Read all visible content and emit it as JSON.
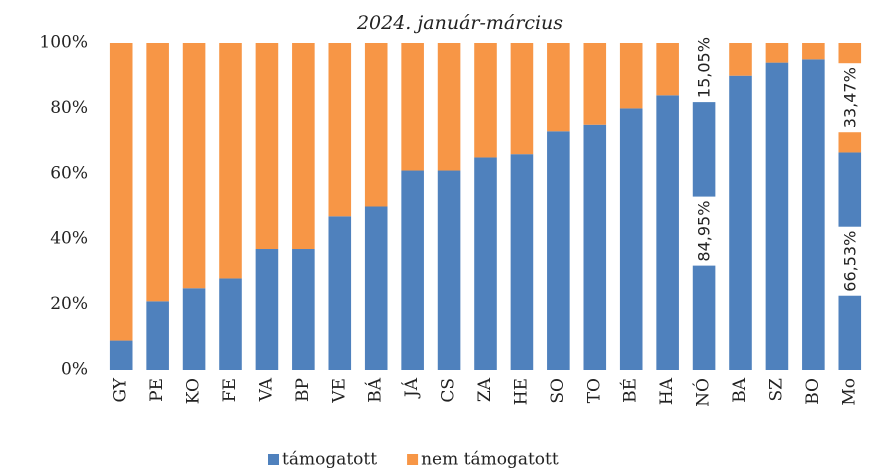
{
  "chart_data": {
    "type": "bar",
    "stacked": true,
    "title": "2024. január-március",
    "categories": [
      "GY",
      "PE",
      "KO",
      "FE",
      "VA",
      "BP",
      "VE",
      "BÁ",
      "JÁ",
      "CS",
      "ZA",
      "HE",
      "SO",
      "TO",
      "BÉ",
      "HA",
      "NÓ",
      "BA",
      "SZ",
      "BO",
      "Mo"
    ],
    "series": [
      {
        "name": "támogatott",
        "color": "#4f81bd",
        "values": [
          9,
          21,
          25,
          28,
          37,
          37,
          47,
          50,
          61,
          61,
          65,
          66,
          73,
          75,
          80,
          84,
          84.95,
          90,
          94,
          95,
          66.53
        ],
        "value_labels": [
          null,
          null,
          null,
          null,
          null,
          null,
          null,
          null,
          null,
          null,
          null,
          null,
          null,
          null,
          null,
          null,
          "84,95%",
          null,
          null,
          null,
          "66,53%"
        ]
      },
      {
        "name": "nem támogatott",
        "color": "#f79646",
        "values": [
          91,
          79,
          75,
          72,
          63,
          63,
          53,
          50,
          39,
          39,
          35,
          34,
          27,
          25,
          20,
          16,
          15.05,
          10,
          6,
          5,
          33.47
        ],
        "value_labels": [
          null,
          null,
          null,
          null,
          null,
          null,
          null,
          null,
          null,
          null,
          null,
          null,
          null,
          null,
          null,
          null,
          "15,05%",
          null,
          null,
          null,
          "33,47%"
        ]
      }
    ],
    "ylim": [
      0,
      100
    ],
    "yticks": [
      {
        "value": 0,
        "label": "0%"
      },
      {
        "value": 20,
        "label": "20%"
      },
      {
        "value": 40,
        "label": "40%"
      },
      {
        "value": 60,
        "label": "60%"
      },
      {
        "value": 80,
        "label": "80%"
      },
      {
        "value": 100,
        "label": "100%"
      }
    ],
    "grid": false,
    "legend": "bottom"
  }
}
